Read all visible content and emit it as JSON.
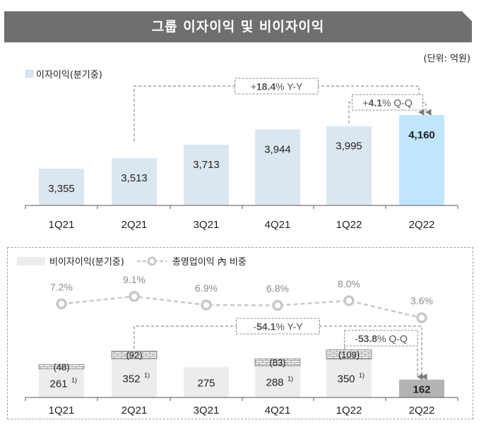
{
  "title": "그룹 이자이익 및 비이자이익",
  "unit": "(단위: 억원)",
  "colors": {
    "banner": "#6f6f6f",
    "interest_bar": "#dbe7f0",
    "interest_bar_highlight": "#bfe6fb",
    "noninterest_bar": "#ececec",
    "noninterest_bar_highlight": "#b3b3b3",
    "ratio_line": "#c8c8c8"
  },
  "chart_data": [
    {
      "type": "bar",
      "legend": "이자이익(분기중)",
      "categories": [
        "1Q21",
        "2Q21",
        "3Q21",
        "4Q21",
        "1Q22",
        "2Q22"
      ],
      "values": [
        3355,
        3513,
        3713,
        3944,
        3995,
        4160
      ],
      "value_labels": [
        "3,355",
        "3,513",
        "3,713",
        "3,944",
        "3,995",
        "4,160"
      ],
      "highlight_index": 5,
      "annotations": {
        "yoy": {
          "bold": "18.4",
          "prefix": "+",
          "suffix": "% Y-Y",
          "from": "2Q21",
          "to": "2Q22"
        },
        "qoq": {
          "bold": "4.1",
          "prefix": "+",
          "suffix": "% Q-Q",
          "from": "1Q22",
          "to": "2Q22"
        }
      }
    },
    {
      "type": "bar",
      "legend": "비이자이익(분기중)",
      "categories": [
        "1Q21",
        "2Q21",
        "3Q21",
        "4Q21",
        "1Q22",
        "2Q22"
      ],
      "values": [
        261,
        352,
        275,
        288,
        350,
        162
      ],
      "value_labels": [
        "261",
        "352",
        "275",
        "288",
        "350",
        "162"
      ],
      "footnote_marks": [
        "1)",
        "1)",
        "",
        "1)",
        "1)",
        ""
      ],
      "negative_items": [
        -48,
        -92,
        null,
        -83,
        -109,
        null
      ],
      "negative_labels": [
        "(48)",
        "(92)",
        "",
        "(83)",
        "(109)",
        ""
      ],
      "highlight_index": 5,
      "annotations": {
        "yoy": {
          "bold": "54.1",
          "prefix": "-",
          "suffix": "% Y-Y",
          "from": "2Q21",
          "to": "2Q22"
        },
        "qoq": {
          "bold": "53.8",
          "prefix": "-",
          "suffix": "% Q-Q",
          "from": "1Q22",
          "to": "2Q22"
        }
      }
    },
    {
      "type": "line",
      "legend": "총영업이익 內 비중",
      "categories": [
        "1Q21",
        "2Q21",
        "3Q21",
        "4Q21",
        "1Q22",
        "2Q22"
      ],
      "values": [
        7.2,
        9.1,
        6.9,
        6.8,
        8.0,
        3.6
      ],
      "value_labels": [
        "7.2%",
        "9.1%",
        "6.9%",
        "6.8%",
        "8.0%",
        "3.6%"
      ]
    }
  ]
}
